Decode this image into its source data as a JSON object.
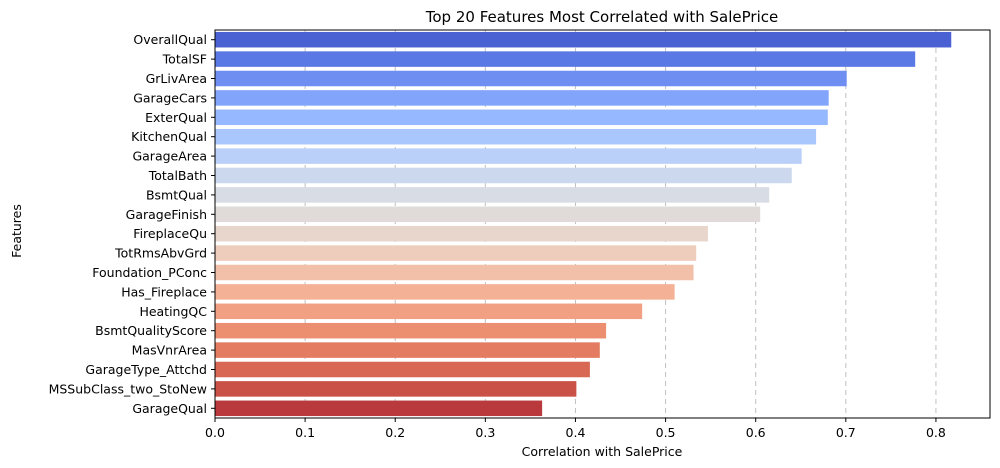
{
  "chart_data": {
    "type": "bar",
    "orientation": "horizontal",
    "title": "Top 20 Features Most Correlated with SalePrice",
    "xlabel": "Correlation with SalePrice",
    "ylabel": "Features",
    "xlim": [
      0,
      0.86
    ],
    "xticks": [
      "0.0",
      "0.1",
      "0.2",
      "0.3",
      "0.4",
      "0.5",
      "0.6",
      "0.7",
      "0.8"
    ],
    "grid": "x-dashed",
    "colormap": "coolwarm",
    "categories": [
      "OverallQual",
      "TotalSF",
      "GrLivArea",
      "GarageCars",
      "ExterQual",
      "KitchenQual",
      "GarageArea",
      "TotalBath",
      "BsmtQual",
      "GarageFinish",
      "FireplaceQu",
      "TotRmsAbvGrd",
      "Foundation_PConc",
      "Has_Fireplace",
      "HeatingQC",
      "BsmtQualityScore",
      "MasVnrArea",
      "GarageType_Attchd",
      "MSSubClass_two_StoNew",
      "GarageQual"
    ],
    "values": [
      0.817,
      0.777,
      0.701,
      0.681,
      0.68,
      0.667,
      0.651,
      0.64,
      0.615,
      0.605,
      0.547,
      0.534,
      0.531,
      0.51,
      0.474,
      0.434,
      0.427,
      0.416,
      0.401,
      0.363
    ],
    "colors": [
      "#4961d2",
      "#5b79e4",
      "#6e8ff1",
      "#82a5fb",
      "#96b8ff",
      "#a9c6fd",
      "#bad0f8",
      "#cbd8ee",
      "#d8dce5",
      "#e0dbd9",
      "#e8d6cc",
      "#efcdbd",
      "#f2c0a9",
      "#f4b196",
      "#f1a083",
      "#ec8f71",
      "#e37c61",
      "#d86753",
      "#ca5146",
      "#b9393c"
    ]
  }
}
